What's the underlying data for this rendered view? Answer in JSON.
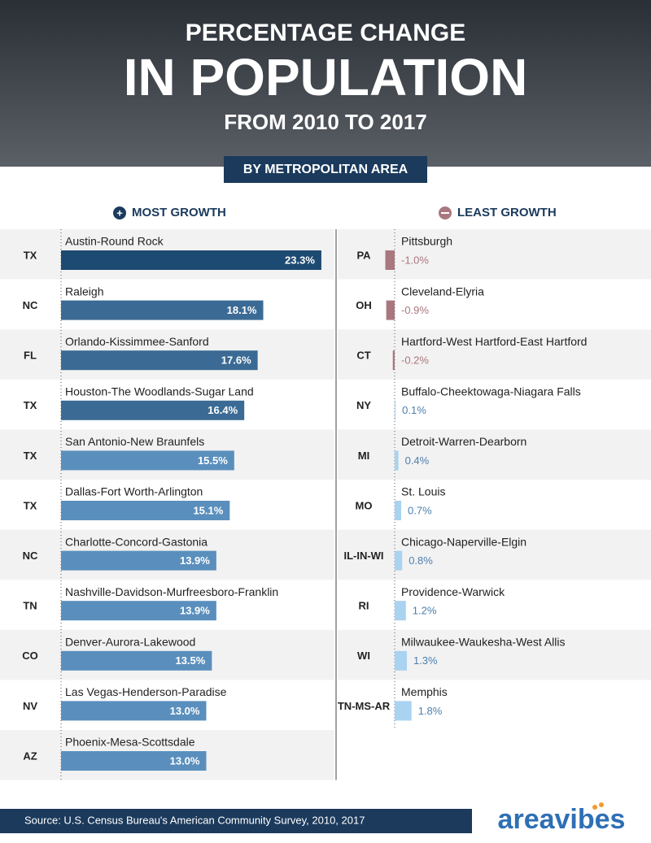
{
  "header": {
    "line1": "PERCENTAGE CHANGE",
    "line2": "IN POPULATION",
    "line3": "FROM 2010 TO 2017",
    "banner": "BY METROPOLITAN AREA"
  },
  "chart_data": [
    {
      "type": "bar",
      "orientation": "horizontal",
      "title": "MOST GROWTH",
      "categories": [
        "Austin-Round Rock",
        "Raleigh",
        "Orlando-Kissimmee-Sanford",
        "Houston-The Woodlands-Sugar Land",
        "San Antonio-New Braunfels",
        "Dallas-Fort Worth-Arlington",
        "Charlotte-Concord-Gastonia",
        "Nashville-Davidson-Murfreesboro-Franklin",
        "Denver-Aurora-Lakewood",
        "Las Vegas-Henderson-Paradise",
        "Phoenix-Mesa-Scottsdale"
      ],
      "states": [
        "TX",
        "NC",
        "FL",
        "TX",
        "TX",
        "TX",
        "NC",
        "TN",
        "CO",
        "NV",
        "AZ"
      ],
      "values": [
        23.3,
        18.1,
        17.6,
        16.4,
        15.5,
        15.1,
        13.9,
        13.9,
        13.5,
        13.0,
        13.0
      ],
      "value_labels": [
        "23.3%",
        "18.1%",
        "17.6%",
        "16.4%",
        "15.5%",
        "15.1%",
        "13.9%",
        "13.9%",
        "13.5%",
        "13.0%",
        "13.0%"
      ],
      "colors": [
        "#1d4a72",
        "#3b6b94",
        "#3b6b94",
        "#3b6b94",
        "#5a8fbd",
        "#5a8fbd",
        "#5a8fbd",
        "#5a8fbd",
        "#5a8fbd",
        "#5a8fbd",
        "#5a8fbd"
      ]
    },
    {
      "type": "bar",
      "orientation": "horizontal",
      "title": "LEAST GROWTH",
      "categories": [
        "Pittsburgh",
        "Cleveland-Elyria",
        "Hartford-West Hartford-East Hartford",
        "Buffalo-Cheektowaga-Niagara Falls",
        "Detroit-Warren-Dearborn",
        "St. Louis",
        "Chicago-Naperville-Elgin",
        "Providence-Warwick",
        "Milwaukee-Waukesha-West Allis",
        "Memphis"
      ],
      "states": [
        "PA",
        "OH",
        "CT",
        "NY",
        "MI",
        "MO",
        "IL-IN-WI",
        "RI",
        "WI",
        "TN-MS-AR"
      ],
      "values": [
        -1.0,
        -0.9,
        -0.2,
        0.1,
        0.4,
        0.7,
        0.8,
        1.2,
        1.3,
        1.8
      ],
      "value_labels": [
        "-1.0%",
        "-0.9%",
        "-0.2%",
        "0.1%",
        "0.4%",
        "0.7%",
        "0.8%",
        "1.2%",
        "1.3%",
        "1.8%"
      ],
      "negative_color": "#a9777e",
      "positive_color": "#a9d3f0",
      "negative_label_color": "#a9777e",
      "positive_label_color": "#4d7fae"
    }
  ],
  "source": "Source: U.S. Census Bureau's American Community Survey, 2010, 2017",
  "brand": "areavibes"
}
